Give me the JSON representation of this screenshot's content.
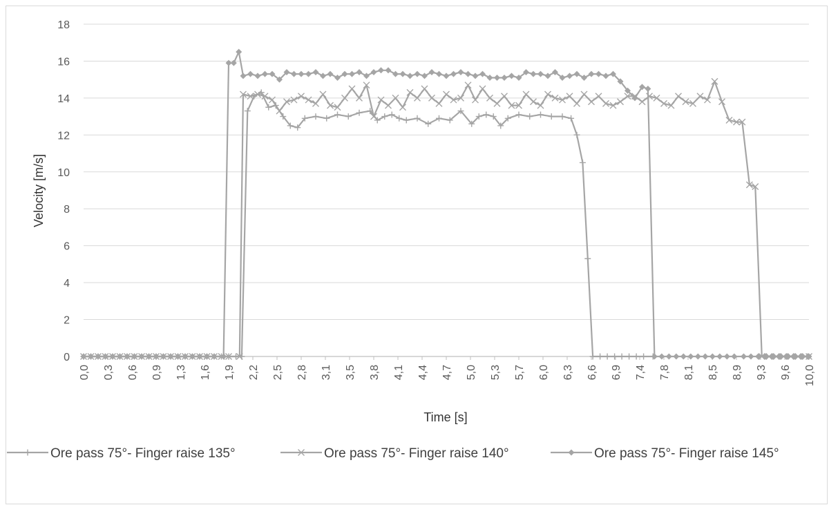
{
  "chart_data": {
    "type": "line",
    "xlabel": "Time [s]",
    "ylabel": "Velocity [m/s]",
    "ylim": [
      0,
      18
    ],
    "yticks": [
      0,
      2,
      4,
      6,
      8,
      10,
      12,
      14,
      16,
      18
    ],
    "xlim": [
      0,
      10
    ],
    "grid": "horizontal",
    "legend_position": "bottom",
    "colors": {
      "series": "#a5a5a5",
      "text": "#595959",
      "grid": "#d9d9d9",
      "axis": "#bfbfbf"
    },
    "x_tick_labels": [
      "0,0",
      "0,3",
      "0,6",
      "0,9",
      "1,3",
      "1,6",
      "1,9",
      "2,2",
      "2,5",
      "2,8",
      "3,1",
      "3,5",
      "3,8",
      "4,1",
      "4,4",
      "4,7",
      "5,0",
      "5,3",
      "5,7",
      "6,0",
      "6,3",
      "6,6",
      "6,9",
      "7,4",
      "7,8",
      "8,1",
      "8,5",
      "8,9",
      "9,3",
      "9,6",
      "10,0"
    ],
    "series": [
      {
        "name": "Ore pass 75°- Finger raise 135°",
        "marker": "plus",
        "points": [
          [
            0,
            0
          ],
          [
            2.18,
            0
          ],
          [
            2.26,
            13.3
          ],
          [
            2.35,
            14.1
          ],
          [
            2.45,
            14.3
          ],
          [
            2.55,
            13.5
          ],
          [
            2.65,
            13.6
          ],
          [
            2.75,
            13.0
          ],
          [
            2.85,
            12.5
          ],
          [
            2.95,
            12.4
          ],
          [
            3.05,
            12.9
          ],
          [
            3.2,
            13.0
          ],
          [
            3.35,
            12.9
          ],
          [
            3.5,
            13.1
          ],
          [
            3.65,
            13.0
          ],
          [
            3.8,
            13.2
          ],
          [
            3.95,
            13.3
          ],
          [
            4.05,
            12.8
          ],
          [
            4.15,
            13.0
          ],
          [
            4.25,
            13.1
          ],
          [
            4.35,
            12.9
          ],
          [
            4.45,
            12.8
          ],
          [
            4.6,
            12.9
          ],
          [
            4.75,
            12.6
          ],
          [
            4.9,
            12.9
          ],
          [
            5.05,
            12.8
          ],
          [
            5.2,
            13.3
          ],
          [
            5.35,
            12.6
          ],
          [
            5.45,
            13.0
          ],
          [
            5.55,
            13.1
          ],
          [
            5.65,
            13.0
          ],
          [
            5.75,
            12.5
          ],
          [
            5.85,
            12.9
          ],
          [
            6.0,
            13.1
          ],
          [
            6.15,
            13.0
          ],
          [
            6.3,
            13.1
          ],
          [
            6.45,
            13.0
          ],
          [
            6.6,
            13.0
          ],
          [
            6.72,
            12.9
          ],
          [
            6.8,
            12.0
          ],
          [
            6.88,
            10.5
          ],
          [
            6.95,
            5.3
          ],
          [
            7.02,
            0
          ],
          [
            7.85,
            0
          ]
        ]
      },
      {
        "name": "Ore pass 75°- Finger raise 140°",
        "marker": "x",
        "points": [
          [
            0,
            0
          ],
          [
            2.15,
            0
          ],
          [
            2.2,
            14.2
          ],
          [
            2.3,
            14.1
          ],
          [
            2.4,
            14.2
          ],
          [
            2.5,
            14.1
          ],
          [
            2.6,
            13.9
          ],
          [
            2.7,
            13.3
          ],
          [
            2.8,
            13.8
          ],
          [
            2.9,
            13.9
          ],
          [
            3.0,
            14.1
          ],
          [
            3.1,
            13.9
          ],
          [
            3.2,
            13.7
          ],
          [
            3.3,
            14.2
          ],
          [
            3.4,
            13.6
          ],
          [
            3.5,
            13.5
          ],
          [
            3.6,
            14.0
          ],
          [
            3.7,
            14.5
          ],
          [
            3.8,
            14.0
          ],
          [
            3.9,
            14.7
          ],
          [
            4.0,
            13.0
          ],
          [
            4.1,
            13.9
          ],
          [
            4.2,
            13.6
          ],
          [
            4.3,
            14.0
          ],
          [
            4.4,
            13.5
          ],
          [
            4.5,
            14.3
          ],
          [
            4.6,
            14.0
          ],
          [
            4.7,
            14.5
          ],
          [
            4.8,
            14.0
          ],
          [
            4.9,
            13.7
          ],
          [
            5.0,
            14.2
          ],
          [
            5.1,
            13.9
          ],
          [
            5.2,
            14.0
          ],
          [
            5.3,
            14.7
          ],
          [
            5.4,
            13.9
          ],
          [
            5.5,
            14.5
          ],
          [
            5.6,
            14.0
          ],
          [
            5.7,
            13.7
          ],
          [
            5.8,
            14.1
          ],
          [
            5.9,
            13.6
          ],
          [
            6.0,
            13.6
          ],
          [
            6.1,
            14.2
          ],
          [
            6.2,
            13.8
          ],
          [
            6.3,
            13.6
          ],
          [
            6.4,
            14.2
          ],
          [
            6.5,
            14.0
          ],
          [
            6.6,
            13.9
          ],
          [
            6.7,
            14.1
          ],
          [
            6.8,
            13.7
          ],
          [
            6.9,
            14.2
          ],
          [
            7.0,
            13.8
          ],
          [
            7.1,
            14.1
          ],
          [
            7.2,
            13.7
          ],
          [
            7.3,
            13.6
          ],
          [
            7.4,
            13.8
          ],
          [
            7.5,
            14.1
          ],
          [
            7.6,
            14.1
          ],
          [
            7.7,
            13.8
          ],
          [
            7.8,
            14.1
          ],
          [
            7.9,
            14.0
          ],
          [
            8.0,
            13.7
          ],
          [
            8.1,
            13.6
          ],
          [
            8.2,
            14.1
          ],
          [
            8.3,
            13.8
          ],
          [
            8.4,
            13.7
          ],
          [
            8.5,
            14.1
          ],
          [
            8.6,
            13.9
          ],
          [
            8.7,
            14.9
          ],
          [
            8.8,
            13.8
          ],
          [
            8.9,
            12.8
          ],
          [
            9.0,
            12.7
          ],
          [
            9.08,
            12.7
          ],
          [
            9.18,
            9.3
          ],
          [
            9.26,
            9.2
          ],
          [
            9.35,
            0
          ],
          [
            10,
            0
          ]
        ]
      },
      {
        "name": "Ore pass 75°- Finger raise 145°",
        "marker": "diamond",
        "points": [
          [
            0,
            0
          ],
          [
            1.93,
            0
          ],
          [
            2.0,
            15.9
          ],
          [
            2.07,
            15.9
          ],
          [
            2.14,
            16.5
          ],
          [
            2.2,
            15.2
          ],
          [
            2.3,
            15.3
          ],
          [
            2.4,
            15.2
          ],
          [
            2.5,
            15.3
          ],
          [
            2.6,
            15.3
          ],
          [
            2.7,
            15.0
          ],
          [
            2.8,
            15.4
          ],
          [
            2.9,
            15.3
          ],
          [
            3.0,
            15.3
          ],
          [
            3.1,
            15.3
          ],
          [
            3.2,
            15.4
          ],
          [
            3.3,
            15.2
          ],
          [
            3.4,
            15.3
          ],
          [
            3.5,
            15.1
          ],
          [
            3.6,
            15.3
          ],
          [
            3.7,
            15.3
          ],
          [
            3.8,
            15.4
          ],
          [
            3.9,
            15.2
          ],
          [
            4.0,
            15.4
          ],
          [
            4.1,
            15.5
          ],
          [
            4.2,
            15.5
          ],
          [
            4.3,
            15.3
          ],
          [
            4.4,
            15.3
          ],
          [
            4.5,
            15.2
          ],
          [
            4.6,
            15.3
          ],
          [
            4.7,
            15.2
          ],
          [
            4.8,
            15.4
          ],
          [
            4.9,
            15.3
          ],
          [
            5.0,
            15.2
          ],
          [
            5.1,
            15.3
          ],
          [
            5.2,
            15.4
          ],
          [
            5.3,
            15.3
          ],
          [
            5.4,
            15.2
          ],
          [
            5.5,
            15.3
          ],
          [
            5.6,
            15.1
          ],
          [
            5.7,
            15.1
          ],
          [
            5.8,
            15.1
          ],
          [
            5.9,
            15.2
          ],
          [
            6.0,
            15.1
          ],
          [
            6.1,
            15.4
          ],
          [
            6.2,
            15.3
          ],
          [
            6.3,
            15.3
          ],
          [
            6.4,
            15.2
          ],
          [
            6.5,
            15.4
          ],
          [
            6.6,
            15.1
          ],
          [
            6.7,
            15.2
          ],
          [
            6.8,
            15.3
          ],
          [
            6.9,
            15.1
          ],
          [
            7.0,
            15.3
          ],
          [
            7.1,
            15.3
          ],
          [
            7.2,
            15.2
          ],
          [
            7.3,
            15.3
          ],
          [
            7.4,
            14.9
          ],
          [
            7.5,
            14.4
          ],
          [
            7.6,
            14.0
          ],
          [
            7.7,
            14.6
          ],
          [
            7.78,
            14.5
          ],
          [
            7.87,
            0
          ],
          [
            9.1,
            0
          ],
          [
            10,
            0
          ]
        ]
      }
    ]
  }
}
